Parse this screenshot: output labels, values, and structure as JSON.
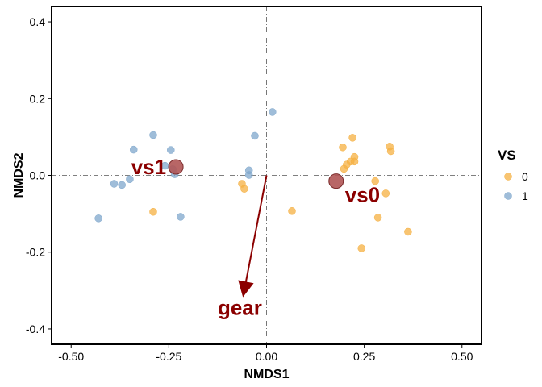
{
  "chart_data": {
    "type": "scatter",
    "xlabel": "NMDS1",
    "ylabel": "NMDS2",
    "xlim": [
      -0.55,
      0.55
    ],
    "ylim": [
      -0.44,
      0.44
    ],
    "x_ticks": [
      -0.5,
      -0.25,
      0.0,
      0.25,
      0.5
    ],
    "x_tick_labels": [
      "-0.50",
      "-0.25",
      "0.00",
      "0.25",
      "0.50"
    ],
    "y_ticks": [
      -0.4,
      -0.2,
      0.0,
      0.2,
      0.4
    ],
    "y_tick_labels": [
      "-0.4",
      "-0.2",
      "0.0",
      "0.2",
      "0.4"
    ],
    "grid": false,
    "reference_lines": {
      "x": 0,
      "y": 0,
      "style": "dash-dot"
    },
    "legend": {
      "title": "VS",
      "position": "right",
      "entries": [
        {
          "label": "0",
          "color": "#f5b041"
        },
        {
          "label": "1",
          "color": "#7fa7cc"
        }
      ]
    },
    "series": [
      {
        "name": "0",
        "color": "#f5b041",
        "points": [
          [
            0.22,
            0.098
          ],
          [
            0.195,
            0.073
          ],
          [
            0.315,
            0.075
          ],
          [
            0.318,
            0.063
          ],
          [
            0.225,
            0.048
          ],
          [
            0.215,
            0.036
          ],
          [
            0.225,
            0.036
          ],
          [
            0.205,
            0.028
          ],
          [
            0.198,
            0.017
          ],
          [
            0.278,
            -0.015
          ],
          [
            0.305,
            -0.047
          ],
          [
            0.285,
            -0.11
          ],
          [
            0.243,
            -0.19
          ],
          [
            0.362,
            -0.147
          ],
          [
            0.065,
            -0.093
          ],
          [
            -0.29,
            -0.095
          ],
          [
            -0.063,
            -0.022
          ],
          [
            -0.057,
            -0.035
          ]
        ]
      },
      {
        "name": "1",
        "color": "#7fa7cc",
        "points": [
          [
            0.015,
            0.165
          ],
          [
            -0.03,
            0.103
          ],
          [
            -0.29,
            0.105
          ],
          [
            -0.34,
            0.067
          ],
          [
            -0.245,
            0.066
          ],
          [
            -0.26,
            0.025
          ],
          [
            -0.24,
            0.016
          ],
          [
            -0.235,
            0.003
          ],
          [
            -0.045,
            0.013
          ],
          [
            -0.045,
            0.001
          ],
          [
            -0.35,
            -0.01
          ],
          [
            -0.37,
            -0.025
          ],
          [
            -0.39,
            -0.022
          ],
          [
            -0.43,
            -0.112
          ],
          [
            -0.22,
            -0.108
          ]
        ]
      }
    ],
    "centroids": [
      {
        "label": "vs1",
        "x": -0.232,
        "y": 0.022,
        "color": "#b05555"
      },
      {
        "label": "vs0",
        "x": 0.178,
        "y": -0.015,
        "color": "#b05555"
      }
    ],
    "vector": {
      "label": "gear",
      "x": -0.06,
      "y": -0.315,
      "color": "#8b0000"
    }
  }
}
